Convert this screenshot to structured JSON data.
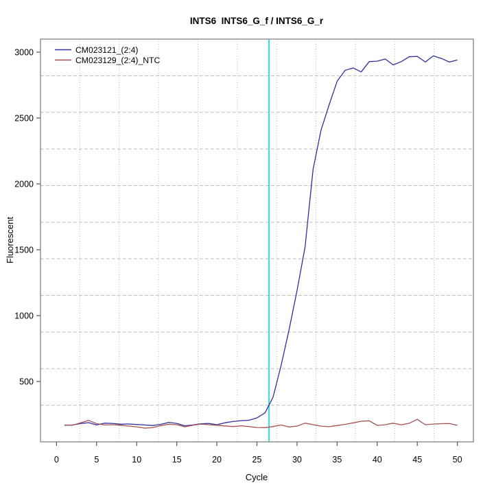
{
  "title": "INTS6  INTS6_G_f / INTS6_G_r",
  "chart_data": {
    "type": "line",
    "title": "INTS6  INTS6_G_f / INTS6_G_r",
    "xlabel": "Cycle",
    "ylabel": "Fluorescent",
    "xlim": [
      -2,
      52
    ],
    "ylim": [
      42,
      3099
    ],
    "x_ticks": [
      0,
      5,
      10,
      15,
      20,
      25,
      30,
      35,
      40,
      45,
      50
    ],
    "y_ticks": [
      500,
      1000,
      1500,
      2000,
      2500,
      3000
    ],
    "grid_divisions": 11,
    "grid_on": true,
    "grid_color": "#b8b8b8",
    "box_color": "#8a8a8a",
    "legend_position": "top-left",
    "threshold_line": {
      "x": 26.5,
      "color": "#00dcdc"
    },
    "x": [
      1,
      2,
      3,
      4,
      5,
      6,
      7,
      8,
      9,
      10,
      11,
      12,
      13,
      14,
      15,
      16,
      17,
      18,
      19,
      20,
      21,
      22,
      23,
      24,
      25,
      26,
      27,
      28,
      29,
      30,
      31,
      32,
      33,
      34,
      35,
      36,
      37,
      38,
      39,
      40,
      41,
      42,
      43,
      44,
      45,
      46,
      47,
      48,
      49,
      50
    ],
    "series": [
      {
        "name": "CM023121_(2:4)",
        "color": "#2e2e9e",
        "values": [
          168,
          170,
          181,
          188,
          170,
          184,
          182,
          176,
          178,
          174,
          170,
          166,
          175,
          190,
          182,
          164,
          170,
          179,
          182,
          172,
          187,
          196,
          203,
          206,
          224,
          262,
          380,
          620,
          890,
          1190,
          1520,
          2110,
          2410,
          2600,
          2780,
          2862,
          2880,
          2850,
          2928,
          2932,
          2948,
          2903,
          2928,
          2965,
          2968,
          2925,
          2972,
          2952,
          2925,
          2940
        ]
      },
      {
        "name": "CM023129_(2:4)_NTC",
        "color": "#a85050",
        "values": [
          170,
          168,
          186,
          205,
          180,
          170,
          172,
          168,
          162,
          156,
          146,
          150,
          165,
          176,
          172,
          156,
          168,
          177,
          172,
          168,
          163,
          158,
          164,
          158,
          151,
          150,
          158,
          170,
          155,
          162,
          184,
          172,
          161,
          157,
          166,
          175,
          186,
          198,
          202,
          167,
          172,
          184,
          171,
          183,
          213,
          172,
          177,
          180,
          181,
          167
        ]
      }
    ]
  }
}
